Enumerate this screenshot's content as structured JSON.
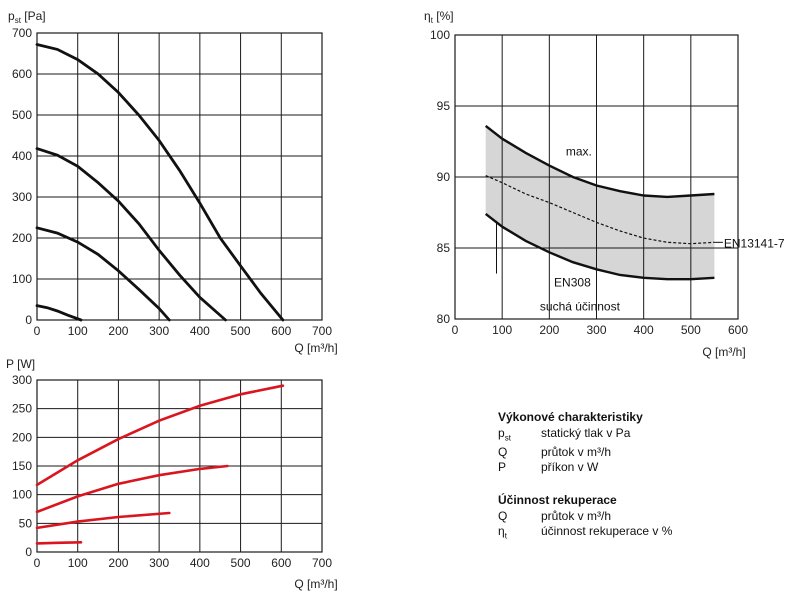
{
  "chart_data": [
    {
      "type": "line",
      "ylabel": "p",
      "ylabel_sub": "st",
      "ylabel_unit": "[Pa]",
      "xlabel": "Q [m³/h]",
      "xlim": [
        0,
        700
      ],
      "ylim": [
        0,
        700
      ],
      "xticks": [
        0,
        100,
        200,
        300,
        400,
        500,
        600,
        700
      ],
      "yticks": [
        0,
        100,
        200,
        300,
        400,
        500,
        600,
        700
      ],
      "grid": true,
      "series_color": "#111111",
      "series": [
        {
          "x": [
            0,
            50,
            100,
            150,
            200,
            250,
            300,
            350,
            400,
            450,
            500,
            550,
            604
          ],
          "y": [
            672,
            660,
            635,
            600,
            555,
            500,
            438,
            365,
            285,
            200,
            132,
            65,
            0
          ]
        },
        {
          "x": [
            0,
            50,
            100,
            150,
            200,
            250,
            300,
            350,
            400,
            463
          ],
          "y": [
            418,
            402,
            375,
            335,
            290,
            235,
            170,
            110,
            55,
            0
          ]
        },
        {
          "x": [
            0,
            50,
            100,
            150,
            200,
            250,
            300,
            325
          ],
          "y": [
            225,
            212,
            190,
            160,
            120,
            75,
            28,
            0
          ]
        },
        {
          "x": [
            0,
            25,
            50,
            75,
            108
          ],
          "y": [
            35,
            30,
            22,
            12,
            0
          ]
        }
      ]
    },
    {
      "type": "line",
      "ylabel": "P [W]",
      "xlabel": "Q [m³/h]",
      "xlim": [
        0,
        700
      ],
      "ylim": [
        0,
        300
      ],
      "xticks": [
        0,
        100,
        200,
        300,
        400,
        500,
        600,
        700
      ],
      "yticks": [
        0,
        50,
        100,
        150,
        200,
        250,
        300
      ],
      "grid": true,
      "series_color": "#d9161f",
      "series": [
        {
          "x": [
            0,
            100,
            200,
            300,
            400,
            500,
            604
          ],
          "y": [
            117,
            160,
            197,
            229,
            255,
            275,
            290
          ]
        },
        {
          "x": [
            0,
            100,
            200,
            300,
            400,
            468
          ],
          "y": [
            70,
            97,
            119,
            134,
            145,
            150
          ]
        },
        {
          "x": [
            0,
            100,
            200,
            325
          ],
          "y": [
            42,
            53,
            61,
            68
          ]
        },
        {
          "x": [
            0,
            50,
            108
          ],
          "y": [
            15,
            16,
            17
          ]
        }
      ]
    },
    {
      "type": "area",
      "ylabel": "η",
      "ylabel_sub": "t",
      "ylabel_unit": "[%]",
      "xlabel": "Q [m³/h]",
      "xlim": [
        0,
        600
      ],
      "ylim": [
        80,
        100
      ],
      "xticks": [
        100,
        200,
        300,
        400,
        500,
        600
      ],
      "xtick_zero_label": "0",
      "yticks": [
        80,
        85,
        90,
        95,
        100
      ],
      "grid": true,
      "band_color": "#d6d6d6",
      "band": {
        "x": [
          65,
          100,
          150,
          200,
          250,
          300,
          350,
          400,
          450,
          500,
          550
        ],
        "upper": [
          93.6,
          92.7,
          91.7,
          90.8,
          90.0,
          89.4,
          89.0,
          88.7,
          88.6,
          88.7,
          88.8
        ],
        "lower": [
          87.4,
          86.5,
          85.5,
          84.7,
          84.0,
          83.5,
          83.1,
          82.9,
          82.8,
          82.8,
          82.9
        ]
      },
      "dashed": {
        "x": [
          65,
          100,
          150,
          200,
          250,
          300,
          350,
          400,
          450,
          500,
          550
        ],
        "y": [
          90.1,
          89.6,
          88.8,
          88.2,
          87.5,
          86.8,
          86.2,
          85.7,
          85.4,
          85.3,
          85.4
        ]
      },
      "annotations": [
        {
          "text": "max.",
          "x": 235,
          "y": 91.5
        },
        {
          "text": "EN13141-7",
          "x": 570,
          "y": 85.3
        },
        {
          "text": "EN308",
          "x": 210,
          "y": 82.3
        },
        {
          "text": "suchá účinnost",
          "x": 180,
          "y": 80.6
        }
      ]
    }
  ],
  "legend": {
    "section1_title": "Výkonové charakteristiky",
    "section1_items": [
      {
        "symbol": "p",
        "sub": "st",
        "desc": "statický tlak v Pa"
      },
      {
        "symbol": "Q",
        "sub": "",
        "desc": "průtok v m³/h"
      },
      {
        "symbol": "P",
        "sub": "",
        "desc": "příkon v W"
      }
    ],
    "section2_title": "Účinnost rekuperace",
    "section2_items": [
      {
        "symbol": "Q",
        "sub": "",
        "desc": "průtok v m³/h"
      },
      {
        "symbol": "η",
        "sub": "t",
        "desc": "účinnost rekuperace v %"
      }
    ]
  }
}
